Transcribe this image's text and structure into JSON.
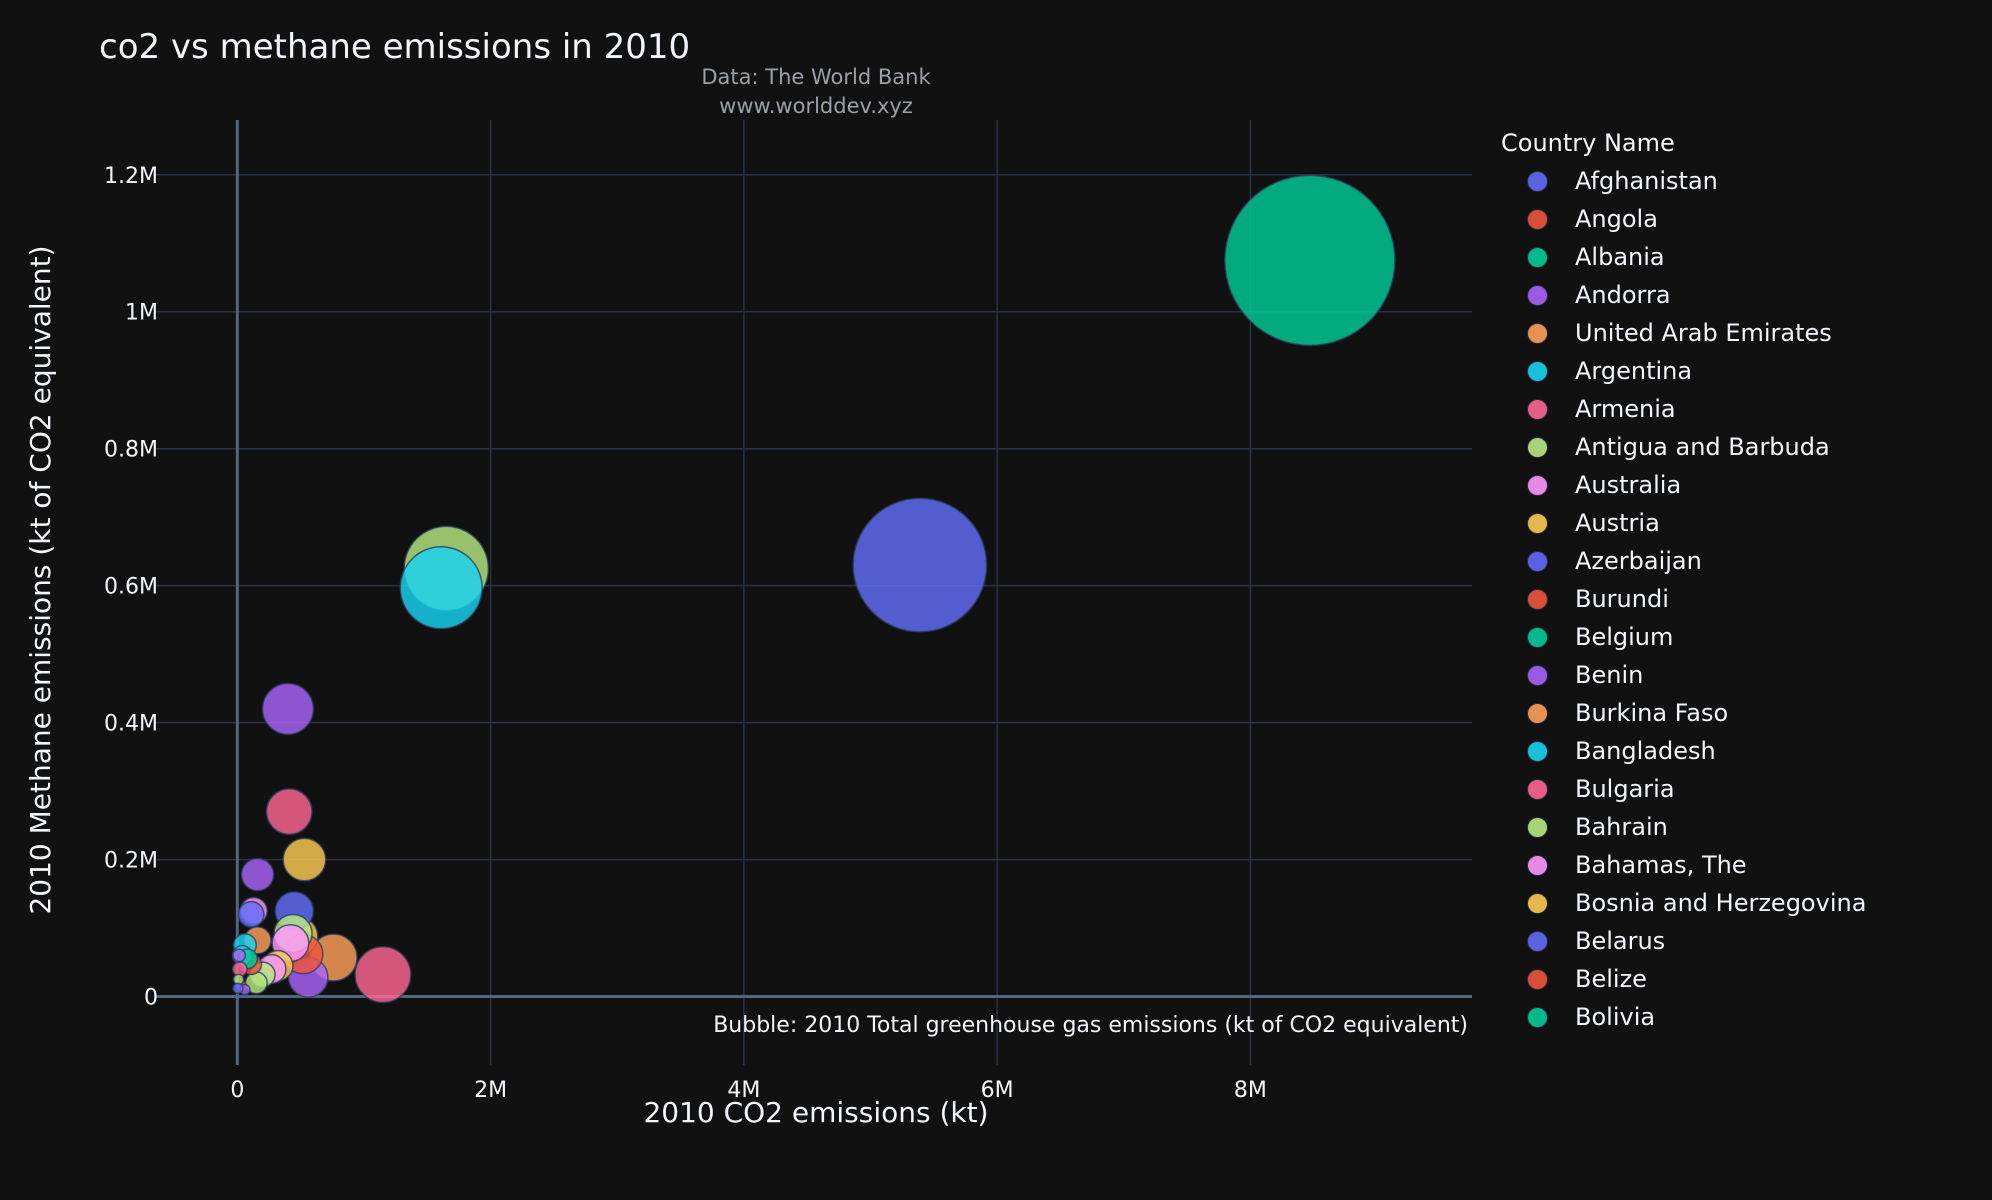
{
  "chart_data": {
    "type": "scatter",
    "title": "co2 vs methane emissions in 2010",
    "subtitle_lines": [
      "Data: The World Bank",
      "www.worlddev.xyz"
    ],
    "xlabel": "2010 CO2 emissions (kt)",
    "ylabel": "2010 Methane emissions (kt of CO2 equivalent)",
    "bubble_note": "Bubble: 2010 Total greenhouse gas emissions (kt of CO2 equivalent)",
    "legend_title": "Country Name",
    "xlim": [
      -650000,
      9750000
    ],
    "ylim": [
      -100000,
      1280000
    ],
    "x_ticks": [
      {
        "v": 0,
        "label": "0"
      },
      {
        "v": 2000000,
        "label": "2M"
      },
      {
        "v": 4000000,
        "label": "4M"
      },
      {
        "v": 6000000,
        "label": "6M"
      },
      {
        "v": 8000000,
        "label": "8M"
      }
    ],
    "y_ticks": [
      {
        "v": 0,
        "label": "0"
      },
      {
        "v": 200000,
        "label": "0.2M"
      },
      {
        "v": 400000,
        "label": "0.4M"
      },
      {
        "v": 600000,
        "label": "0.6M"
      },
      {
        "v": 800000,
        "label": "0.8M"
      },
      {
        "v": 1000000,
        "label": "1M"
      },
      {
        "v": 1200000,
        "label": "1.2M"
      }
    ],
    "legend": [
      {
        "name": "Afghanistan",
        "color": "#636efa"
      },
      {
        "name": "Angola",
        "color": "#EF553B"
      },
      {
        "name": "Albania",
        "color": "#00cc96"
      },
      {
        "name": "Andorra",
        "color": "#ab63fa"
      },
      {
        "name": "United Arab Emirates",
        "color": "#FFA15A"
      },
      {
        "name": "Argentina",
        "color": "#19d3f3"
      },
      {
        "name": "Armenia",
        "color": "#FF6692"
      },
      {
        "name": "Antigua and Barbuda",
        "color": "#B6E880"
      },
      {
        "name": "Australia",
        "color": "#FF97FF"
      },
      {
        "name": "Austria",
        "color": "#FECB52"
      },
      {
        "name": "Azerbaijan",
        "color": "#636efa"
      },
      {
        "name": "Burundi",
        "color": "#EF553B"
      },
      {
        "name": "Belgium",
        "color": "#00cc96"
      },
      {
        "name": "Benin",
        "color": "#ab63fa"
      },
      {
        "name": "Burkina Faso",
        "color": "#FFA15A"
      },
      {
        "name": "Bangladesh",
        "color": "#19d3f3"
      },
      {
        "name": "Bulgaria",
        "color": "#FF6692"
      },
      {
        "name": "Bahrain",
        "color": "#B6E880"
      },
      {
        "name": "Bahamas, The",
        "color": "#FF97FF"
      },
      {
        "name": "Bosnia and Herzegovina",
        "color": "#FECB52"
      },
      {
        "name": "Belarus",
        "color": "#636efa"
      },
      {
        "name": "Belize",
        "color": "#EF553B"
      },
      {
        "name": "Bolivia",
        "color": "#00cc96"
      }
    ],
    "points": [
      {
        "x": 8470000,
        "y": 1075000,
        "total": 11200000,
        "color": "#00cc96"
      },
      {
        "x": 5390000,
        "y": 630000,
        "total": 6900000,
        "color": "#636efa"
      },
      {
        "x": 1650000,
        "y": 625000,
        "total": 2750000,
        "color": "#B6E880"
      },
      {
        "x": 1610000,
        "y": 597000,
        "total": 2600000,
        "color": "#19d3f3"
      },
      {
        "x": 1150000,
        "y": 32000,
        "total": 1200000,
        "color": "#FF6692"
      },
      {
        "x": 400000,
        "y": 420000,
        "total": 1000000,
        "color": "#ab63fa"
      },
      {
        "x": 410000,
        "y": 270000,
        "total": 800000,
        "color": "#FF6692"
      },
      {
        "x": 530000,
        "y": 200000,
        "total": 700000,
        "color": "#FECB52"
      },
      {
        "x": 760000,
        "y": 57000,
        "total": 850000,
        "color": "#FFA15A"
      },
      {
        "x": 450000,
        "y": 125000,
        "total": 560000,
        "color": "#636efa"
      },
      {
        "x": 560000,
        "y": 28000,
        "total": 600000,
        "color": "#ab63fa"
      },
      {
        "x": 160000,
        "y": 178000,
        "total": 400000,
        "color": "#ab63fa"
      },
      {
        "x": 130000,
        "y": 125000,
        "total": 280000,
        "color": "#FF97FF"
      },
      {
        "x": 110000,
        "y": 120000,
        "total": 250000,
        "color": "#636efa"
      },
      {
        "x": 440000,
        "y": 92000,
        "total": 560000,
        "color": "#B6E880"
      },
      {
        "x": 480000,
        "y": 88000,
        "total": 600000,
        "color": "#FECB52"
      },
      {
        "x": 420000,
        "y": 78000,
        "total": 520000,
        "color": "#FF97FF"
      },
      {
        "x": 520000,
        "y": 62000,
        "total": 600000,
        "color": "#EF553B"
      },
      {
        "x": 160000,
        "y": 82000,
        "total": 280000,
        "color": "#FFA15A"
      },
      {
        "x": 60000,
        "y": 75000,
        "total": 200000,
        "color": "#19d3f3"
      },
      {
        "x": 40000,
        "y": 60000,
        "total": 150000,
        "color": "#19d3f3"
      },
      {
        "x": 80000,
        "y": 55000,
        "total": 150000,
        "color": "#00cc96"
      },
      {
        "x": 110000,
        "y": 47000,
        "total": 160000,
        "color": "#EF553B"
      },
      {
        "x": 270000,
        "y": 40000,
        "total": 320000,
        "color": "#FF97FF"
      },
      {
        "x": 320000,
        "y": 45000,
        "total": 350000,
        "color": "#FECB52"
      },
      {
        "x": 200000,
        "y": 32000,
        "total": 240000,
        "color": "#B6E880"
      },
      {
        "x": 150000,
        "y": 20000,
        "total": 180000,
        "color": "#B6E880"
      },
      {
        "x": 20000,
        "y": 40000,
        "total": 80000,
        "color": "#FF6692"
      },
      {
        "x": 10000,
        "y": 25000,
        "total": 40000,
        "color": "#B6E880"
      },
      {
        "x": 30000,
        "y": 15000,
        "total": 45000,
        "color": "#EF553B"
      },
      {
        "x": 5000,
        "y": 12000,
        "total": 20000,
        "color": "#636efa"
      },
      {
        "x": 60000,
        "y": 10000,
        "total": 30000,
        "color": "#ab63fa"
      },
      {
        "x": 15000,
        "y": 60000,
        "total": 60000,
        "color": "#ab63fa"
      }
    ]
  }
}
